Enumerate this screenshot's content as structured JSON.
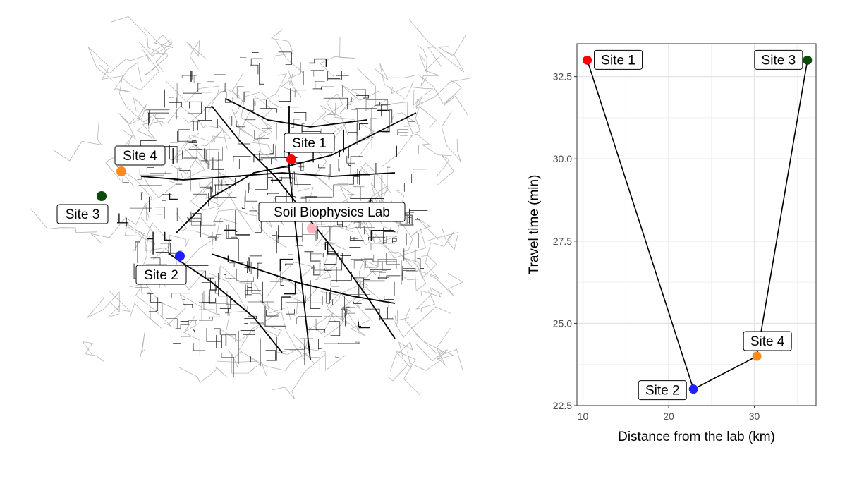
{
  "map": {
    "lab": {
      "label": "Soil Biophysics Lab",
      "color": "#ffb6c1"
    },
    "sites": [
      {
        "label": "Site 1",
        "color": "#ff0000"
      },
      {
        "label": "Site 2",
        "color": "#1f1fff"
      },
      {
        "label": "Site 3",
        "color": "#0b4a0b"
      },
      {
        "label": "Site 4",
        "color": "#ff8c1a"
      }
    ]
  },
  "chart_data": {
    "type": "scatter",
    "xlabel": "Distance from the lab (km)",
    "ylabel": "Travel time (min)",
    "xlim": [
      9.3,
      37.2
    ],
    "ylim": [
      22.5,
      33.5
    ],
    "x_ticks": [
      10,
      20,
      30
    ],
    "y_ticks": [
      22.5,
      25.0,
      27.5,
      30.0,
      32.5
    ],
    "x_tick_labels": [
      "10",
      "20",
      "30"
    ],
    "y_tick_labels": [
      "22.5",
      "25.0",
      "27.5",
      "30.0",
      "32.5"
    ],
    "grid": true,
    "connect_path": [
      "Site 1",
      "Site 2",
      "Site 4",
      "Site 3"
    ],
    "points": [
      {
        "label": "Site 1",
        "x": 10.5,
        "y": 33.0,
        "color": "#ff0000"
      },
      {
        "label": "Site 2",
        "x": 22.9,
        "y": 23.0,
        "color": "#1f1fff"
      },
      {
        "label": "Site 3",
        "x": 36.2,
        "y": 33.0,
        "color": "#0b4a0b"
      },
      {
        "label": "Site 4",
        "x": 30.3,
        "y": 24.0,
        "color": "#ff8c1a"
      }
    ]
  }
}
